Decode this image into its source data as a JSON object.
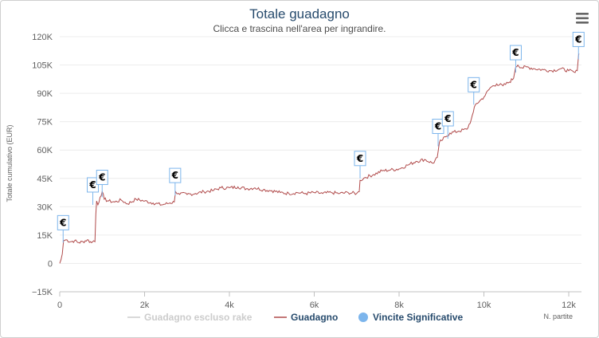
{
  "chart_data": {
    "type": "line",
    "title": "Totale guadagno",
    "subtitle": "Clicca e trascina nell'area per ingrandire.",
    "ylabel": "Totale cumulativo (EUR)",
    "xlabel": "N. partite",
    "xlim": [
      0,
      12300
    ],
    "ylim": [
      -15000,
      120000
    ],
    "x_ticks": [
      0,
      2000,
      4000,
      6000,
      8000,
      10000,
      12000
    ],
    "x_tick_labels": [
      "0",
      "2k",
      "4k",
      "6k",
      "8k",
      "10k",
      "12k"
    ],
    "y_ticks": [
      -15000,
      0,
      15000,
      30000,
      45000,
      60000,
      75000,
      90000,
      105000,
      120000
    ],
    "y_tick_labels": [
      "−15K",
      "0",
      "15K",
      "30K",
      "45K",
      "60K",
      "75K",
      "90K",
      "105K",
      "120K"
    ],
    "grid": true,
    "legend_position": "bottom-center",
    "series": [
      {
        "name": "Guadagno escluso rake",
        "color": "#cccccc",
        "hidden": true,
        "points": []
      },
      {
        "name": "Guadagno",
        "color": "#b04a4a",
        "points": [
          [
            0,
            0
          ],
          [
            30,
            2000
          ],
          [
            60,
            5000
          ],
          [
            90,
            12000
          ],
          [
            150,
            12500
          ],
          [
            250,
            11500
          ],
          [
            350,
            12000
          ],
          [
            450,
            11000
          ],
          [
            550,
            11500
          ],
          [
            650,
            12500
          ],
          [
            750,
            11000
          ],
          [
            800,
            12000
          ],
          [
            830,
            11500
          ],
          [
            850,
            26000
          ],
          [
            870,
            33000
          ],
          [
            900,
            31000
          ],
          [
            950,
            35000
          ],
          [
            1000,
            38000
          ],
          [
            1050,
            34000
          ],
          [
            1150,
            33000
          ],
          [
            1300,
            32500
          ],
          [
            1450,
            33500
          ],
          [
            1600,
            31500
          ],
          [
            1800,
            34000
          ],
          [
            2000,
            33000
          ],
          [
            2200,
            32000
          ],
          [
            2400,
            31000
          ],
          [
            2600,
            32000
          ],
          [
            2700,
            32500
          ],
          [
            2730,
            38000
          ],
          [
            2800,
            37000
          ],
          [
            3000,
            36500
          ],
          [
            3200,
            37000
          ],
          [
            3400,
            38000
          ],
          [
            3600,
            38500
          ],
          [
            3800,
            40000
          ],
          [
            4000,
            40000
          ],
          [
            4200,
            40500
          ],
          [
            4400,
            39500
          ],
          [
            4600,
            40000
          ],
          [
            4800,
            39000
          ],
          [
            5000,
            38500
          ],
          [
            5200,
            37500
          ],
          [
            5400,
            37000
          ],
          [
            5600,
            37500
          ],
          [
            5800,
            37000
          ],
          [
            6000,
            37500
          ],
          [
            6200,
            37000
          ],
          [
            6400,
            37500
          ],
          [
            6600,
            37000
          ],
          [
            6800,
            37500
          ],
          [
            7000,
            37000
          ],
          [
            7060,
            38000
          ],
          [
            7080,
            44000
          ],
          [
            7200,
            45500
          ],
          [
            7400,
            47000
          ],
          [
            7600,
            49000
          ],
          [
            7800,
            49500
          ],
          [
            8000,
            50000
          ],
          [
            8200,
            52000
          ],
          [
            8400,
            54000
          ],
          [
            8600,
            55000
          ],
          [
            8800,
            53000
          ],
          [
            8900,
            56000
          ],
          [
            8950,
            64000
          ],
          [
            9000,
            65000
          ],
          [
            9100,
            67000
          ],
          [
            9200,
            69000
          ],
          [
            9400,
            70000
          ],
          [
            9600,
            71000
          ],
          [
            9700,
            76000
          ],
          [
            9750,
            80000
          ],
          [
            9800,
            84000
          ],
          [
            9900,
            86000
          ],
          [
            10000,
            88000
          ],
          [
            10150,
            93000
          ],
          [
            10300,
            95000
          ],
          [
            10450,
            94000
          ],
          [
            10600,
            96000
          ],
          [
            10700,
            98000
          ],
          [
            10750,
            104000
          ],
          [
            10800,
            105000
          ],
          [
            10900,
            103500
          ],
          [
            11000,
            104000
          ],
          [
            11200,
            103000
          ],
          [
            11400,
            102500
          ],
          [
            11600,
            102000
          ],
          [
            11800,
            103000
          ],
          [
            12000,
            102000
          ],
          [
            12150,
            101000
          ],
          [
            12200,
            102000
          ],
          [
            12230,
            110000
          ],
          [
            12240,
            111000
          ]
        ]
      },
      {
        "name": "Vincite Significative",
        "color": "#7cb5ec",
        "flag_symbol": "€",
        "points": [
          [
            80,
            11000
          ],
          [
            780,
            31000
          ],
          [
            1000,
            35000
          ],
          [
            2720,
            36000
          ],
          [
            7080,
            45000
          ],
          [
            8920,
            62000
          ],
          [
            9150,
            66000
          ],
          [
            9760,
            84000
          ],
          [
            10750,
            101000
          ],
          [
            12230,
            108000
          ]
        ]
      }
    ]
  },
  "ui": {
    "menu_icon": "hamburger-menu-icon"
  }
}
